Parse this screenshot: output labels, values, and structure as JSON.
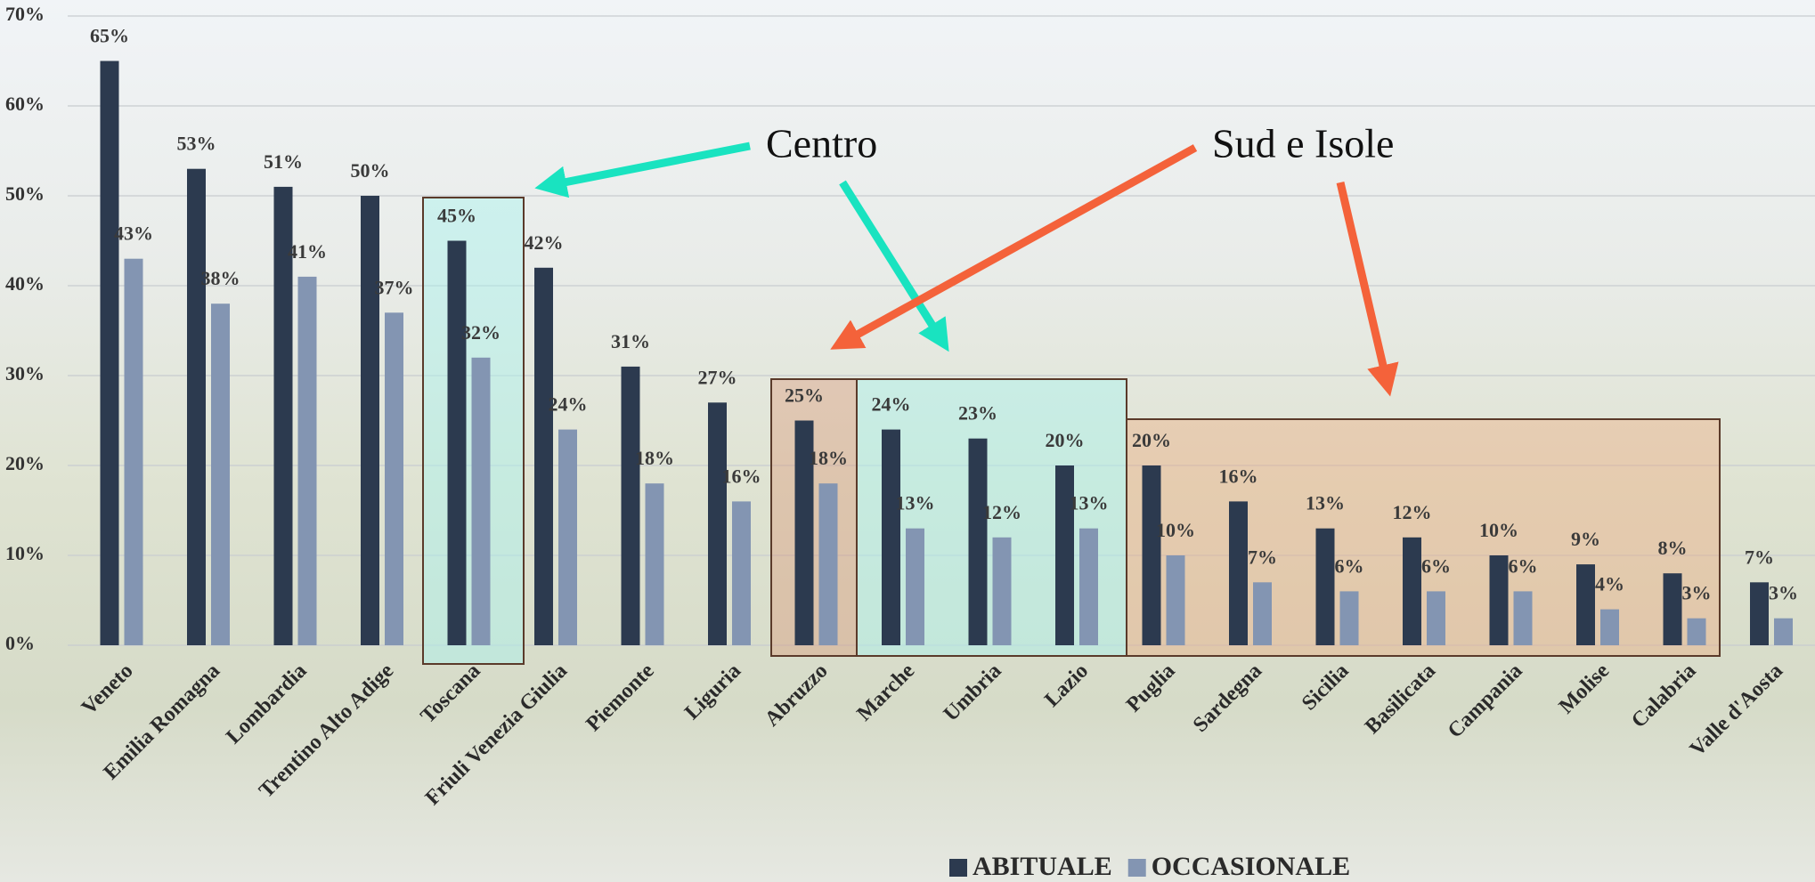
{
  "chart_data": {
    "type": "bar",
    "categories": [
      "Veneto",
      "Emilia Romagna",
      "Lombardia",
      "Trentino Alto Adige",
      "Toscana",
      "Friuli Venezia Giulia",
      "Piemonte",
      "Liguria",
      "Abruzzo",
      "Marche",
      "Umbria",
      "Lazio",
      "Puglia",
      "Sardegna",
      "Sicilia",
      "Basilicata",
      "Campania",
      "Molise",
      "Calabria",
      "Valle d'Aosta"
    ],
    "series": [
      {
        "name": "ABITUALE",
        "color": "#2c3a4f",
        "values": [
          65,
          53,
          51,
          50,
          45,
          42,
          31,
          27,
          25,
          24,
          23,
          20,
          20,
          16,
          13,
          12,
          10,
          9,
          8,
          7
        ],
        "value_labels": [
          "65%",
          "53%",
          "51%",
          "50%",
          "45%",
          "42%",
          "31%",
          "27%",
          "25%",
          "24%",
          "23%",
          "20%",
          "20%",
          "16%",
          "13%",
          "12%",
          "10%",
          "9%",
          "8%",
          "7%"
        ]
      },
      {
        "name": "OCCASIONALE",
        "color": "#8395b2",
        "values": [
          43,
          38,
          41,
          37,
          32,
          24,
          18,
          16,
          18,
          13,
          12,
          13,
          10,
          7,
          6,
          6,
          6,
          4,
          3,
          3
        ],
        "value_labels": [
          "43%",
          "38%",
          "41%",
          "37%",
          "32%",
          "24%",
          "18%",
          "16%",
          "18%",
          "13%",
          "12%",
          "13%",
          "10%",
          "7%",
          "6%",
          "6%",
          "6%",
          "4%",
          "3%",
          "3%"
        ]
      }
    ],
    "ylim": [
      0,
      70
    ],
    "yticks": [
      {
        "value": 0,
        "label": "0%"
      },
      {
        "value": 10,
        "label": "10%"
      },
      {
        "value": 20,
        "label": "20%"
      },
      {
        "value": 30,
        "label": "30%"
      },
      {
        "value": 40,
        "label": "40%"
      },
      {
        "value": 50,
        "label": "50%"
      },
      {
        "value": 60,
        "label": "60%"
      },
      {
        "value": 70,
        "label": "70%"
      }
    ],
    "grid": true,
    "annotations": [
      "Centro",
      "Sud e Isole"
    ]
  }
}
